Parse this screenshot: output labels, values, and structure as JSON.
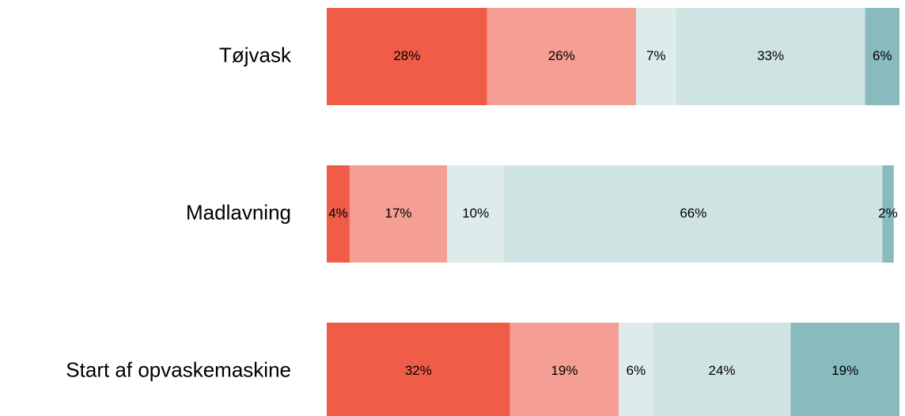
{
  "chart_data": {
    "type": "stacked-bar-horizontal",
    "categories": [
      "Tøjvask",
      "Madlavning",
      "Start af opvaskemaskine"
    ],
    "xlim": [
      0,
      100
    ],
    "series": [
      {
        "color": "#f05c48",
        "values": [
          28,
          4,
          32
        ],
        "value_labels": [
          "28%",
          "4%",
          "32%"
        ]
      },
      {
        "color": "#f59e93",
        "values": [
          26,
          17,
          19
        ],
        "value_labels": [
          "26%",
          "17%",
          "19%"
        ]
      },
      {
        "color": "#ddeceb",
        "values": [
          7,
          10,
          6
        ],
        "value_labels": [
          "7%",
          "10%",
          "6%"
        ]
      },
      {
        "color": "#cfe4e2",
        "values": [
          33,
          66,
          24
        ],
        "value_labels": [
          "33%",
          "66%",
          "24%"
        ]
      },
      {
        "color": "#88babe",
        "values": [
          6,
          2,
          19
        ],
        "value_labels": [
          "6%",
          "2%",
          "19%"
        ]
      }
    ]
  }
}
